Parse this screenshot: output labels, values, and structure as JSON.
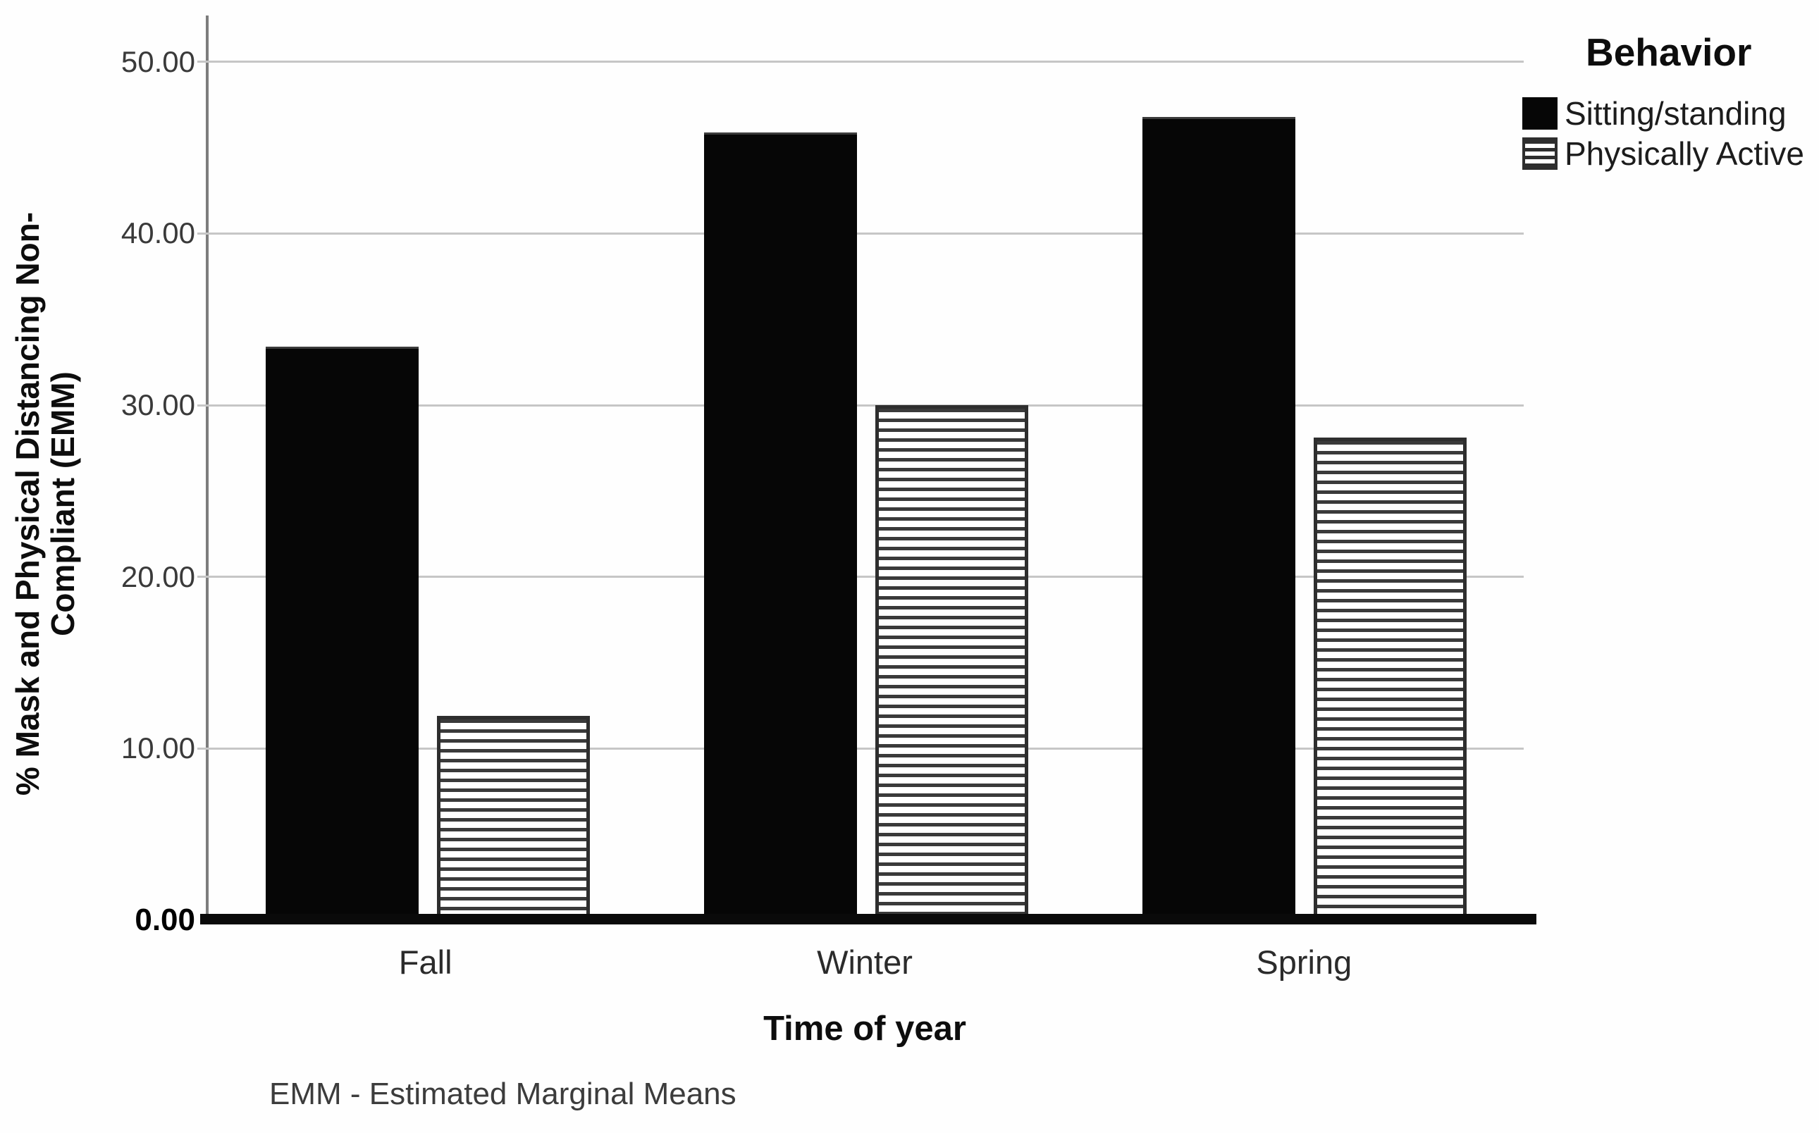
{
  "chart_data": {
    "type": "bar",
    "title": "",
    "categories": [
      "Fall",
      "Winter",
      "Spring"
    ],
    "series": [
      {
        "name": "Sitting/standing",
        "pattern": "solid-black",
        "values": [
          33.4,
          45.9,
          46.8
        ]
      },
      {
        "name": "Physically Active",
        "pattern": "horizontal-stripes",
        "values": [
          11.9,
          30.0,
          28.1
        ]
      }
    ],
    "xlabel": "Time of year",
    "ylabel_line1": "% Mask and Physical Distancing Non-",
    "ylabel_line2": "Compliant (EMM)",
    "y_ticks": [
      "0.00",
      "10.00",
      "20.00",
      "30.00",
      "40.00",
      "50.00"
    ],
    "y_tick_values": [
      0,
      10,
      20,
      30,
      40,
      50
    ],
    "ylim": [
      0,
      52.7
    ],
    "grid": "horizontal-only",
    "legend_title": "Behavior",
    "legend_position": "top-right",
    "footnote": "EMM - Estimated Marginal Means",
    "colors": {
      "bar_solid": "#060606",
      "stripe_dark": "#3a3a3a",
      "gridline": "#c6c6c6",
      "axis_line": "#7d7d7d",
      "baseline": "#0a0a0a"
    }
  }
}
